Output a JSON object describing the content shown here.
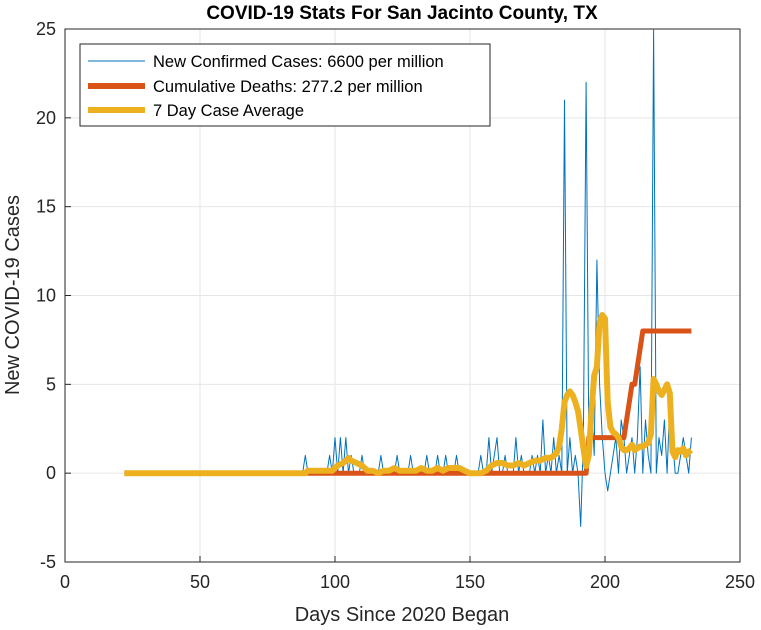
{
  "chart_data": {
    "type": "line",
    "title": "COVID-19 Stats For San Jacinto County, TX",
    "xlabel": "Days Since 2020 Began",
    "ylabel": "New COVID-19 Cases",
    "xlim": [
      0,
      250
    ],
    "ylim": [
      -5,
      25
    ],
    "xticks": [
      "0",
      "50",
      "100",
      "150",
      "200",
      "250"
    ],
    "yticks": [
      "-5",
      "0",
      "5",
      "10",
      "15",
      "20",
      "25"
    ],
    "grid": true,
    "legend_position": "top-left",
    "series": [
      {
        "name": "New Confirmed Cases: 6600 per million",
        "color": "#0072bd",
        "x": [
          22,
          88,
          89,
          90,
          91,
          92,
          93,
          94,
          95,
          96,
          97,
          98,
          99,
          100,
          101,
          102,
          103,
          104,
          105,
          106,
          107,
          108,
          109,
          110,
          111,
          112,
          113,
          114,
          115,
          116,
          117,
          118,
          119,
          120,
          121,
          122,
          123,
          124,
          125,
          126,
          127,
          128,
          129,
          130,
          131,
          132,
          133,
          134,
          135,
          136,
          137,
          138,
          139,
          140,
          141,
          142,
          143,
          144,
          145,
          146,
          147,
          148,
          149,
          150,
          151,
          152,
          153,
          154,
          155,
          156,
          157,
          158,
          159,
          160,
          161,
          162,
          163,
          164,
          165,
          166,
          167,
          168,
          169,
          170,
          171,
          172,
          173,
          174,
          175,
          176,
          177,
          178,
          179,
          180,
          181,
          182,
          183,
          184,
          185,
          186,
          187,
          188,
          189,
          190,
          191,
          192,
          193,
          194,
          195,
          196,
          197,
          198,
          199,
          200,
          201,
          202,
          203,
          204,
          205,
          206,
          207,
          208,
          209,
          210,
          211,
          212,
          213,
          214,
          215,
          216,
          217,
          218,
          219,
          220,
          221,
          222,
          223,
          224,
          225,
          226,
          227,
          228,
          229,
          230,
          231,
          232
        ],
        "y": [
          0,
          0,
          1,
          0,
          0,
          0,
          0,
          0,
          0,
          0,
          0,
          1,
          0,
          2,
          0,
          2,
          0,
          2,
          0,
          1,
          0,
          0,
          0,
          1,
          0,
          0,
          0,
          0,
          0,
          0,
          1,
          0,
          0,
          0,
          0,
          0,
          1,
          0,
          0,
          0,
          0,
          1,
          0,
          0,
          0,
          0,
          0,
          1,
          0,
          0,
          0,
          1,
          0,
          0,
          1,
          0,
          0,
          0,
          1,
          0,
          0,
          0,
          0,
          0,
          0,
          0,
          0,
          1,
          0,
          0,
          2,
          0,
          1,
          2,
          0,
          0,
          1,
          0,
          0,
          0,
          2,
          0,
          1,
          0,
          0,
          0,
          1,
          0,
          1,
          0,
          3,
          0,
          1,
          0,
          2,
          0,
          1,
          0,
          21,
          0,
          2,
          0,
          1,
          0,
          -3,
          2,
          22,
          2,
          4,
          1,
          12,
          5,
          2,
          0,
          -1,
          0,
          1,
          2,
          0,
          3,
          2,
          0,
          1,
          2,
          0,
          2,
          6,
          0,
          3,
          1,
          0,
          25,
          0,
          2,
          1,
          3,
          0,
          4,
          2,
          0,
          0,
          1,
          2,
          1,
          0,
          2
        ]
      },
      {
        "name": "Cumulative Deaths: 277.2 per million",
        "color": "#d95319",
        "x": [
          22,
          193,
          194,
          206,
          207,
          210,
          211,
          213,
          214,
          232
        ],
        "y": [
          0,
          0,
          2,
          2,
          2,
          5,
          5,
          7,
          8,
          8
        ]
      },
      {
        "name": "7 Day Case Average",
        "color": "#edb120",
        "x": [
          22,
          89,
          90,
          92,
          95,
          97,
          99,
          100,
          101,
          103,
          104,
          105,
          106,
          108,
          110,
          112,
          114,
          116,
          118,
          120,
          122,
          124,
          126,
          128,
          130,
          132,
          134,
          136,
          138,
          140,
          142,
          144,
          146,
          148,
          150,
          152,
          154,
          156,
          158,
          160,
          162,
          164,
          166,
          168,
          170,
          172,
          174,
          176,
          178,
          180,
          181,
          182,
          183,
          184,
          185,
          186,
          187,
          188,
          189,
          190,
          191,
          192,
          193,
          194,
          195,
          196,
          197,
          198,
          199,
          200,
          201,
          202,
          203,
          204,
          205,
          206,
          207,
          208,
          209,
          210,
          211,
          212,
          213,
          214,
          215,
          216,
          217,
          218,
          219,
          220,
          221,
          222,
          223,
          224,
          225,
          226,
          227,
          228,
          229,
          230,
          231,
          232
        ],
        "y": [
          0,
          0,
          0.14,
          0.14,
          0.14,
          0.14,
          0.14,
          0.3,
          0.43,
          0.57,
          0.71,
          0.86,
          0.71,
          0.57,
          0.43,
          0.14,
          0.14,
          0,
          0.14,
          0.14,
          0.29,
          0.14,
          0.14,
          0.14,
          0.14,
          0.29,
          0.14,
          0.14,
          0.29,
          0.14,
          0.29,
          0.29,
          0.29,
          0.14,
          0,
          0,
          0,
          0.14,
          0.43,
          0.57,
          0.57,
          0.43,
          0.43,
          0.57,
          0.43,
          0.57,
          0.71,
          0.71,
          0.86,
          0.86,
          1.0,
          1.1,
          1.5,
          2.5,
          4.0,
          4.4,
          4.6,
          4.4,
          4.0,
          3.5,
          2.5,
          1.4,
          0.4,
          1.0,
          3.5,
          5.5,
          6.0,
          8.5,
          8.9,
          8.7,
          4.0,
          2.6,
          2.3,
          2.2,
          2.0,
          1.5,
          1.3,
          1.3,
          1.4,
          1.6,
          1.3,
          1.4,
          1.5,
          1.5,
          1.6,
          1.7,
          2.2,
          5.3,
          5.0,
          4.6,
          4.4,
          4.7,
          5.0,
          4.5,
          1.2,
          0.9,
          1.3,
          1.2,
          1.4,
          1.0,
          1.2,
          1.3
        ]
      }
    ]
  }
}
